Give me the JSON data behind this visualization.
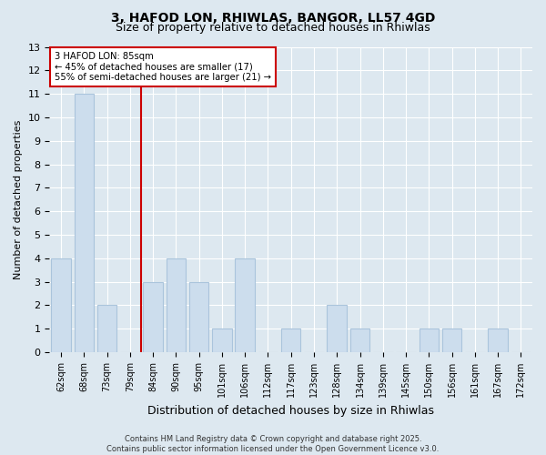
{
  "title_line1": "3, HAFOD LON, RHIWLAS, BANGOR, LL57 4GD",
  "title_line2": "Size of property relative to detached houses in Rhiwlas",
  "xlabel": "Distribution of detached houses by size in Rhiwlas",
  "ylabel": "Number of detached properties",
  "footer_line1": "Contains HM Land Registry data © Crown copyright and database right 2025.",
  "footer_line2": "Contains public sector information licensed under the Open Government Licence v3.0.",
  "categories": [
    "62sqm",
    "68sqm",
    "73sqm",
    "79sqm",
    "84sqm",
    "90sqm",
    "95sqm",
    "101sqm",
    "106sqm",
    "112sqm",
    "117sqm",
    "123sqm",
    "128sqm",
    "134sqm",
    "139sqm",
    "145sqm",
    "150sqm",
    "156sqm",
    "161sqm",
    "167sqm",
    "172sqm"
  ],
  "values": [
    4,
    11,
    2,
    0,
    3,
    4,
    3,
    1,
    4,
    0,
    1,
    0,
    2,
    1,
    0,
    0,
    1,
    1,
    0,
    1,
    0
  ],
  "bar_color": "#ccdded",
  "bar_edge_color": "#aac4dc",
  "background_color": "#dde8f0",
  "plot_bg_color": "#dde8f0",
  "grid_color": "#ffffff",
  "red_line_x": 3.5,
  "annotation_text_line1": "3 HAFOD LON: 85sqm",
  "annotation_text_line2": "← 45% of detached houses are smaller (17)",
  "annotation_text_line3": "55% of semi-detached houses are larger (21) →",
  "annotation_box_color": "#ffffff",
  "annotation_box_edge": "#cc0000",
  "ylim": [
    0,
    13
  ],
  "yticks": [
    0,
    1,
    2,
    3,
    4,
    5,
    6,
    7,
    8,
    9,
    10,
    11,
    12,
    13
  ],
  "title1_fontsize": 10,
  "title2_fontsize": 9,
  "ylabel_fontsize": 8,
  "xlabel_fontsize": 9,
  "tick_fontsize": 7,
  "footer_fontsize": 6
}
